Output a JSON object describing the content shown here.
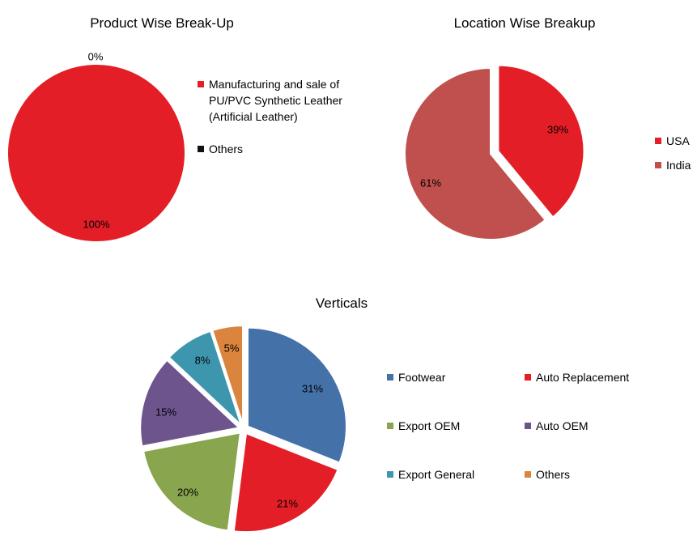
{
  "chart_data": [
    {
      "type": "pie",
      "title": "Product Wise Break-Up",
      "categories": [
        "Manufacturing and sale of PU/PVC Synthetic Leather (Artificial Leather)",
        "Others"
      ],
      "values": [
        100,
        0
      ],
      "labels": [
        "100%",
        "0%"
      ],
      "colors": [
        "#e31e26",
        "#111111"
      ],
      "legend_position": "right"
    },
    {
      "type": "pie",
      "title": "Location Wise Breakup",
      "categories": [
        "USA",
        "India"
      ],
      "values": [
        39,
        61
      ],
      "labels": [
        "39%",
        "61%"
      ],
      "colors": [
        "#e31e26",
        "#c0504d"
      ],
      "legend_position": "right"
    },
    {
      "type": "pie",
      "title": "Verticals",
      "categories": [
        "Footwear",
        "Auto Replacement",
        "Export OEM",
        "Auto OEM",
        "Export General",
        "Others"
      ],
      "values": [
        31,
        21,
        20,
        15,
        8,
        5
      ],
      "labels": [
        "31%",
        "21%",
        "20%",
        "15%",
        "8%",
        "5%"
      ],
      "colors": [
        "#4571a9",
        "#e31e26",
        "#89a54e",
        "#6e548d",
        "#3d96ae",
        "#db843d"
      ],
      "legend_position": "right"
    }
  ]
}
